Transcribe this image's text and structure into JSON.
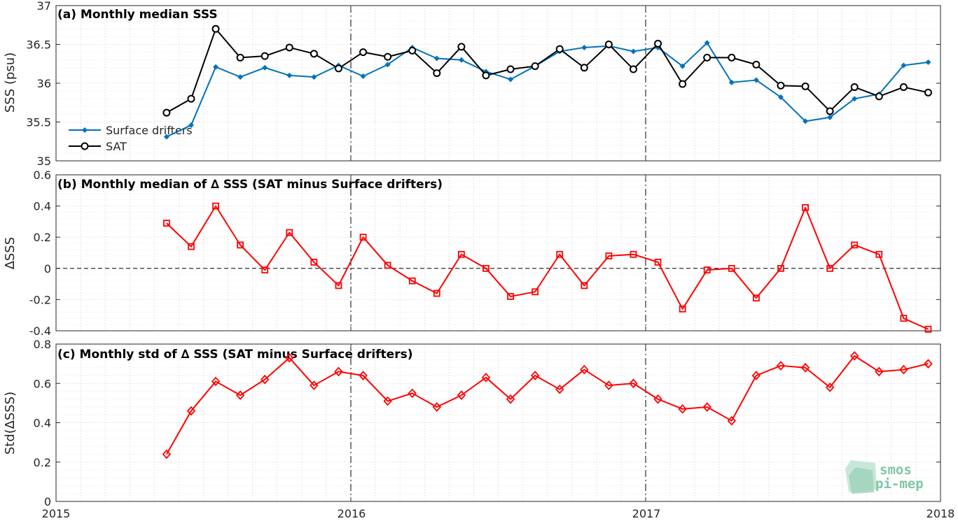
{
  "colors": {
    "drifters": "#0072bd",
    "sat": "#000000",
    "delta": "#ff0000",
    "grid": "#d0d0d0",
    "logo": "#7fc6a8"
  },
  "x_tick_labels": [
    "2015",
    "2016",
    "2017",
    "2018"
  ],
  "logo": {
    "line1": "smos",
    "line2": "pi-mep"
  },
  "chart_data": [
    {
      "type": "line",
      "title": "(a) Monthly median SSS",
      "ylabel": "SSS (psu)",
      "xlim": [
        2015,
        2018
      ],
      "ylim": [
        35,
        37
      ],
      "yticks": [
        35,
        35.5,
        36,
        36.5,
        37
      ],
      "ytick_labels": [
        "35",
        "35.5",
        "36",
        "36.5",
        "37"
      ],
      "grid": true,
      "legend": "lower-left",
      "x": [
        "2015-05",
        "2015-06",
        "2015-07",
        "2015-08",
        "2015-09",
        "2015-10",
        "2015-11",
        "2015-12",
        "2016-01",
        "2016-02",
        "2016-03",
        "2016-04",
        "2016-05",
        "2016-06",
        "2016-07",
        "2016-08",
        "2016-09",
        "2016-10",
        "2016-11",
        "2016-12",
        "2017-01",
        "2017-02",
        "2017-03",
        "2017-04",
        "2017-05",
        "2017-06",
        "2017-07",
        "2017-08",
        "2017-09",
        "2017-10",
        "2017-11",
        "2017-12"
      ],
      "series": [
        {
          "name": "Surface drifters",
          "marker": "diamond-filled",
          "color": "#0072bd",
          "values": [
            35.31,
            35.46,
            36.21,
            36.08,
            36.2,
            36.1,
            36.08,
            36.23,
            36.09,
            36.24,
            36.46,
            36.32,
            36.3,
            36.15,
            36.05,
            36.22,
            36.41,
            36.46,
            36.48,
            36.41,
            36.46,
            36.22,
            36.52,
            36.01,
            36.04,
            35.82,
            35.51,
            35.56,
            35.8,
            35.86,
            36.23,
            36.27
          ]
        },
        {
          "name": "SAT",
          "marker": "circle-open",
          "color": "#000000",
          "values": [
            35.62,
            35.8,
            36.7,
            36.33,
            36.35,
            36.46,
            36.38,
            36.19,
            36.4,
            36.34,
            36.42,
            36.13,
            36.47,
            36.1,
            36.18,
            36.22,
            36.44,
            36.2,
            36.5,
            36.18,
            36.51,
            35.99,
            36.33,
            36.33,
            36.24,
            35.97,
            35.96,
            35.64,
            35.95,
            35.83,
            35.95,
            35.88
          ]
        }
      ]
    },
    {
      "type": "line",
      "title": "(b) Monthly median of ∆ SSS (SAT minus Surface drifters)",
      "ylabel": "∆SSS",
      "xlim": [
        2015,
        2018
      ],
      "ylim": [
        -0.4,
        0.6
      ],
      "yticks": [
        -0.4,
        -0.2,
        0,
        0.2,
        0.4,
        0.6
      ],
      "ytick_labels": [
        "-0.4",
        "-0.2",
        "0",
        "0.2",
        "0.4",
        "0.6"
      ],
      "grid": true,
      "zero_line": true,
      "x": [
        "2015-05",
        "2015-06",
        "2015-07",
        "2015-08",
        "2015-09",
        "2015-10",
        "2015-11",
        "2015-12",
        "2016-01",
        "2016-02",
        "2016-03",
        "2016-04",
        "2016-05",
        "2016-06",
        "2016-07",
        "2016-08",
        "2016-09",
        "2016-10",
        "2016-11",
        "2016-12",
        "2017-01",
        "2017-02",
        "2017-03",
        "2017-04",
        "2017-05",
        "2017-06",
        "2017-07",
        "2017-08",
        "2017-09",
        "2017-10",
        "2017-11",
        "2017-12"
      ],
      "series": [
        {
          "marker": "square-open",
          "color": "#ff0000",
          "values": [
            0.29,
            0.14,
            0.4,
            0.15,
            -0.01,
            0.23,
            0.04,
            -0.11,
            0.2,
            0.02,
            -0.08,
            -0.16,
            0.09,
            0.0,
            -0.18,
            -0.15,
            0.09,
            -0.11,
            0.08,
            0.09,
            0.04,
            -0.26,
            -0.01,
            0.0,
            -0.19,
            0.0,
            0.39,
            0.0,
            0.15,
            0.09,
            -0.32,
            -0.39
          ]
        }
      ]
    },
    {
      "type": "line",
      "title": "(c) Monthly std of ∆ SSS (SAT minus Surface drifters)",
      "ylabel": "Std(∆SSS)",
      "xlim": [
        2015,
        2018
      ],
      "ylim": [
        0,
        0.8
      ],
      "yticks": [
        0,
        0.2,
        0.4,
        0.6,
        0.8
      ],
      "ytick_labels": [
        "0",
        "0.2",
        "0.4",
        "0.6",
        "0.8"
      ],
      "grid": true,
      "x": [
        "2015-05",
        "2015-06",
        "2015-07",
        "2015-08",
        "2015-09",
        "2015-10",
        "2015-11",
        "2015-12",
        "2016-01",
        "2016-02",
        "2016-03",
        "2016-04",
        "2016-05",
        "2016-06",
        "2016-07",
        "2016-08",
        "2016-09",
        "2016-10",
        "2016-11",
        "2016-12",
        "2017-01",
        "2017-02",
        "2017-03",
        "2017-04",
        "2017-05",
        "2017-06",
        "2017-07",
        "2017-08",
        "2017-09",
        "2017-10",
        "2017-11",
        "2017-12"
      ],
      "series": [
        {
          "marker": "diamond-open",
          "color": "#ff0000",
          "values": [
            0.24,
            0.46,
            0.61,
            0.54,
            0.62,
            0.73,
            0.59,
            0.66,
            0.64,
            0.51,
            0.55,
            0.48,
            0.54,
            0.63,
            0.52,
            0.64,
            0.57,
            0.67,
            0.59,
            0.6,
            0.52,
            0.47,
            0.48,
            0.41,
            0.64,
            0.69,
            0.68,
            0.58,
            0.74,
            0.66,
            0.67,
            0.7
          ]
        }
      ]
    }
  ]
}
